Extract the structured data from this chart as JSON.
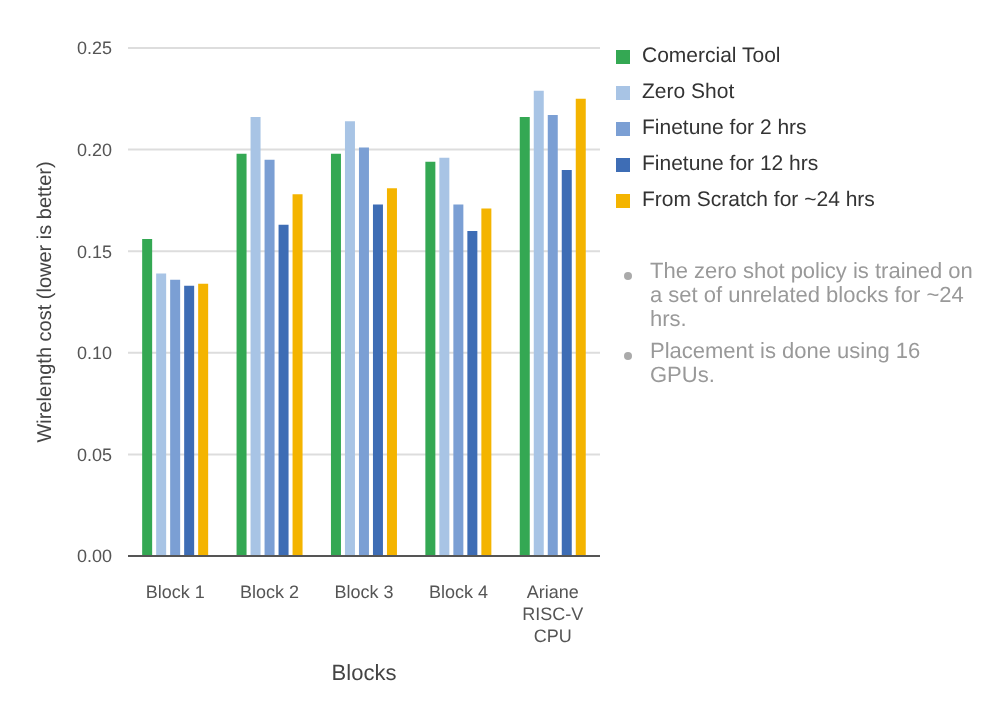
{
  "chart_data": {
    "type": "bar",
    "xlabel": "Blocks",
    "ylabel": "Wirelength cost (lower is better)",
    "categories": [
      "Block 1",
      "Block 2",
      "Block 3",
      "Block 4",
      "Ariane RISC-V CPU"
    ],
    "series": [
      {
        "name": "Comercial Tool",
        "color": "#34a853",
        "values": [
          0.156,
          0.198,
          0.198,
          0.194,
          0.216
        ]
      },
      {
        "name": "Zero Shot",
        "color": "#a8c4e5",
        "values": [
          0.139,
          0.216,
          0.214,
          0.196,
          0.229
        ]
      },
      {
        "name": "Finetune for 2 hrs",
        "color": "#7b9fd4",
        "values": [
          0.136,
          0.195,
          0.201,
          0.173,
          0.217
        ]
      },
      {
        "name": "Finetune for 12 hrs",
        "color": "#3e6db5",
        "values": [
          0.133,
          0.163,
          0.173,
          0.16,
          0.19
        ]
      },
      {
        "name": "From Scratch for ~24 hrs",
        "color": "#f4b400",
        "values": [
          0.134,
          0.178,
          0.181,
          0.171,
          0.225
        ]
      }
    ],
    "ylim": [
      0,
      0.25
    ],
    "yticks": [
      {
        "value": 0,
        "label": "0.00"
      },
      0.05,
      {
        "value": 0.1,
        "label": "0.10"
      },
      0.15,
      {
        "value": 0.2,
        "label": "0.20"
      },
      0.25
    ],
    "grid": "y",
    "legend": "right",
    "annotations": [
      "The zero shot policy is trained on a set of unrelated blocks for ~24 hrs.",
      "Placement is done using 16 GPUs."
    ]
  }
}
